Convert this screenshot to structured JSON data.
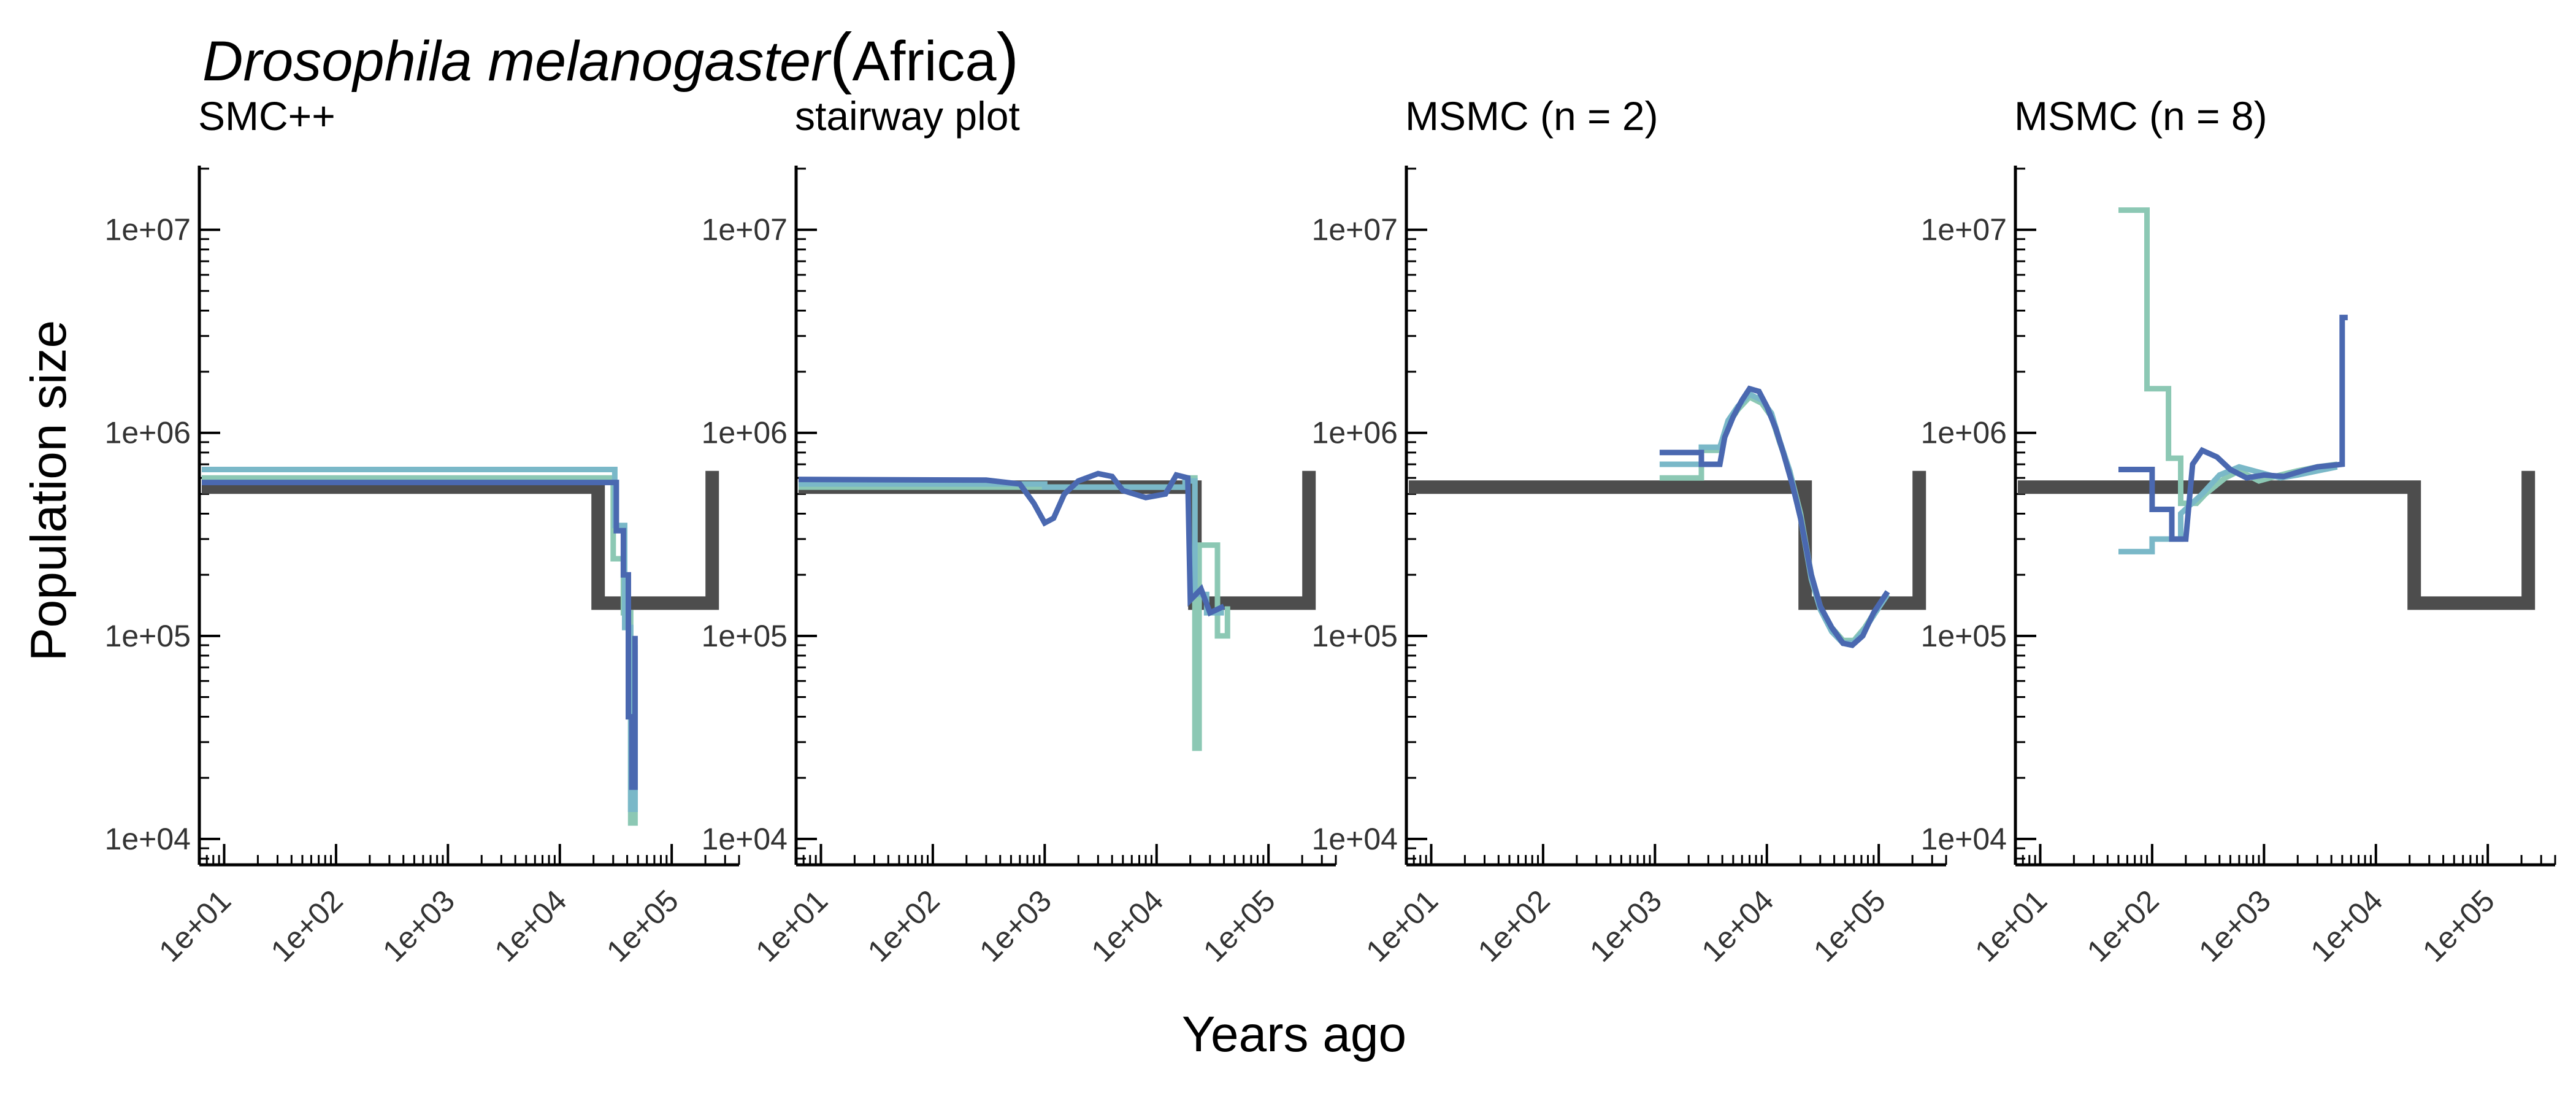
{
  "figure": {
    "title_species": "Drosophila melanogaster",
    "title_region": "Africa",
    "xlabel": "Years ago",
    "ylabel": "Population size"
  },
  "chart_data": [
    {
      "type": "line",
      "title": "SMC++",
      "x_scale": "log",
      "y_scale": "log",
      "xlim": [
        6,
        400000
      ],
      "ylim": [
        8000,
        20000000
      ],
      "x_ticks": [
        "1e+01",
        "1e+02",
        "1e+03",
        "1e+04",
        "1e+05"
      ],
      "y_ticks": [
        "1e+04",
        "1e+05",
        "1e+06",
        "1e+07"
      ],
      "series": [
        {
          "role": "truth",
          "color": "#4d4d4d",
          "points": [
            [
              6,
              540000
            ],
            [
              22000,
              540000
            ],
            [
              22000,
              145000
            ],
            [
              230000,
              145000
            ],
            [
              230000,
              650000
            ]
          ]
        },
        {
          "color": "#8cc8b4",
          "points": [
            [
              6,
              600000
            ],
            [
              30000,
              600000
            ],
            [
              30000,
              240000
            ],
            [
              37000,
              240000
            ],
            [
              37000,
              130000
            ],
            [
              43000,
              130000
            ],
            [
              43000,
              12000
            ],
            [
              47000,
              12000
            ],
            [
              47000,
              80000
            ]
          ]
        },
        {
          "color": "#7ab8c8",
          "points": [
            [
              6,
              660000
            ],
            [
              31000,
              660000
            ],
            [
              31000,
              350000
            ],
            [
              38000,
              350000
            ],
            [
              38000,
              110000
            ],
            [
              43000,
              110000
            ],
            [
              43000,
              14000
            ],
            [
              47000,
              14000
            ],
            [
              47000,
              90000
            ]
          ]
        },
        {
          "color": "#4a68b0",
          "points": [
            [
              6,
              570000
            ],
            [
              32000,
              570000
            ],
            [
              32000,
              330000
            ],
            [
              37000,
              330000
            ],
            [
              37000,
              200000
            ],
            [
              41000,
              200000
            ],
            [
              41000,
              40000
            ],
            [
              44000,
              40000
            ],
            [
              44000,
              18000
            ],
            [
              47000,
              18000
            ],
            [
              47000,
              100000
            ]
          ]
        }
      ]
    },
    {
      "type": "line",
      "title": "stairway plot",
      "x_scale": "log",
      "y_scale": "log",
      "xlim": [
        6,
        400000
      ],
      "ylim": [
        8000,
        20000000
      ],
      "x_ticks": [
        "1e+01",
        "1e+02",
        "1e+03",
        "1e+04",
        "1e+05"
      ],
      "y_ticks": [
        "1e+04",
        "1e+05",
        "1e+06",
        "1e+07"
      ],
      "series": [
        {
          "role": "truth",
          "color": "#4d4d4d",
          "points": [
            [
              6,
              540000
            ],
            [
              22000,
              540000
            ],
            [
              22000,
              145000
            ],
            [
              230000,
              145000
            ],
            [
              230000,
              650000
            ]
          ]
        },
        {
          "color": "#8cc8b4",
          "points": [
            [
              6,
              540000
            ],
            [
              18000,
              540000
            ],
            [
              18000,
              600000
            ],
            [
              22000,
              600000
            ],
            [
              22000,
              28000
            ],
            [
              24000,
              28000
            ],
            [
              24000,
              280000
            ],
            [
              35000,
              280000
            ],
            [
              35000,
              100000
            ],
            [
              43000,
              100000
            ],
            [
              43000,
              140000
            ]
          ]
        },
        {
          "color": "#7ab8c8",
          "points": [
            [
              6,
              560000
            ],
            [
              1000,
              560000
            ],
            [
              1000,
              540000
            ],
            [
              18000,
              540000
            ],
            [
              18000,
              580000
            ],
            [
              22000,
              580000
            ],
            [
              22000,
              160000
            ],
            [
              28000,
              160000
            ],
            [
              28000,
              130000
            ],
            [
              40000,
              130000
            ]
          ]
        },
        {
          "color": "#4a68b0",
          "points": [
            [
              6,
              590000
            ],
            [
              300,
              585000
            ],
            [
              600,
              560000
            ],
            [
              800,
              450000
            ],
            [
              1000,
              360000
            ],
            [
              1200,
              380000
            ],
            [
              1500,
              500000
            ],
            [
              2000,
              580000
            ],
            [
              3000,
              630000
            ],
            [
              4000,
              610000
            ],
            [
              5000,
              520000
            ],
            [
              8000,
              480000
            ],
            [
              12000,
              500000
            ],
            [
              15000,
              620000
            ],
            [
              19000,
              600000
            ],
            [
              20000,
              150000
            ],
            [
              25000,
              170000
            ],
            [
              30000,
              130000
            ],
            [
              40000,
              140000
            ]
          ]
        }
      ]
    },
    {
      "type": "line",
      "title": "MSMC (n = 2)",
      "x_scale": "log",
      "y_scale": "log",
      "xlim": [
        6,
        400000
      ],
      "ylim": [
        8000,
        20000000
      ],
      "x_ticks": [
        "1e+01",
        "1e+02",
        "1e+03",
        "1e+04",
        "1e+05"
      ],
      "y_ticks": [
        "1e+04",
        "1e+05",
        "1e+06",
        "1e+07"
      ],
      "series": [
        {
          "role": "truth",
          "color": "#4d4d4d",
          "points": [
            [
              6,
              540000
            ],
            [
              22000,
              540000
            ],
            [
              22000,
              145000
            ],
            [
              230000,
              145000
            ],
            [
              230000,
              650000
            ]
          ]
        },
        {
          "color": "#8cc8b4",
          "points": [
            [
              1100,
              600000
            ],
            [
              2600,
              600000
            ],
            [
              2600,
              820000
            ],
            [
              3800,
              820000
            ],
            [
              4500,
              1100000
            ],
            [
              5500,
              1300000
            ],
            [
              7000,
              1500000
            ],
            [
              9000,
              1400000
            ],
            [
              11000,
              1200000
            ],
            [
              13000,
              900000
            ],
            [
              16000,
              650000
            ],
            [
              20000,
              400000
            ],
            [
              25000,
              200000
            ],
            [
              30000,
              140000
            ],
            [
              38000,
              110000
            ],
            [
              48000,
              95000
            ],
            [
              60000,
              95000
            ],
            [
              75000,
              110000
            ],
            [
              95000,
              135000
            ],
            [
              120000,
              165000
            ]
          ]
        },
        {
          "color": "#7ab8c8",
          "points": [
            [
              1100,
              700000
            ],
            [
              2600,
              700000
            ],
            [
              2600,
              850000
            ],
            [
              3800,
              850000
            ],
            [
              4500,
              1150000
            ],
            [
              5500,
              1350000
            ],
            [
              7000,
              1550000
            ],
            [
              9000,
              1450000
            ],
            [
              11000,
              1250000
            ],
            [
              13000,
              920000
            ],
            [
              16000,
              650000
            ],
            [
              20000,
              380000
            ],
            [
              25000,
              190000
            ],
            [
              30000,
              135000
            ],
            [
              38000,
              105000
            ],
            [
              48000,
              92000
            ],
            [
              60000,
              93000
            ],
            [
              75000,
              108000
            ],
            [
              95000,
              132000
            ],
            [
              120000,
              160000
            ]
          ]
        },
        {
          "color": "#4a68b0",
          "points": [
            [
              1100,
              800000
            ],
            [
              2600,
              800000
            ],
            [
              2600,
              700000
            ],
            [
              3800,
              700000
            ],
            [
              4200,
              950000
            ],
            [
              5000,
              1200000
            ],
            [
              6000,
              1450000
            ],
            [
              7000,
              1650000
            ],
            [
              8500,
              1600000
            ],
            [
              10000,
              1350000
            ],
            [
              12000,
              1050000
            ],
            [
              14000,
              800000
            ],
            [
              17000,
              550000
            ],
            [
              20000,
              380000
            ],
            [
              25000,
              200000
            ],
            [
              30000,
              140000
            ],
            [
              38000,
              110000
            ],
            [
              48000,
              92000
            ],
            [
              58000,
              90000
            ],
            [
              72000,
              100000
            ],
            [
              90000,
              130000
            ],
            [
              120000,
              165000
            ]
          ]
        }
      ]
    },
    {
      "type": "line",
      "title": "MSMC (n = 8)",
      "x_scale": "log",
      "y_scale": "log",
      "xlim": [
        6,
        400000
      ],
      "ylim": [
        8000,
        20000000
      ],
      "x_ticks": [
        "1e+01",
        "1e+02",
        "1e+03",
        "1e+04",
        "1e+05"
      ],
      "y_ticks": [
        "1e+04",
        "1e+05",
        "1e+06",
        "1e+07"
      ],
      "series": [
        {
          "role": "truth",
          "color": "#4d4d4d",
          "points": [
            [
              6,
              540000
            ],
            [
              22000,
              540000
            ],
            [
              22000,
              145000
            ],
            [
              230000,
              145000
            ],
            [
              230000,
              650000
            ]
          ]
        },
        {
          "color": "#8cc8b4",
          "points": [
            [
              50,
              12500000
            ],
            [
              90,
              12500000
            ],
            [
              90,
              1650000
            ],
            [
              140,
              1650000
            ],
            [
              140,
              750000
            ],
            [
              180,
              750000
            ],
            [
              180,
              450000
            ],
            [
              250,
              450000
            ],
            [
              300,
              500000
            ],
            [
              450,
              600000
            ],
            [
              600,
              650000
            ],
            [
              900,
              580000
            ],
            [
              1400,
              620000
            ],
            [
              2000,
              650000
            ],
            [
              3000,
              680000
            ],
            [
              4500,
              700000
            ]
          ]
        },
        {
          "color": "#7ab8c8",
          "points": [
            [
              50,
              260000
            ],
            [
              100,
              260000
            ],
            [
              100,
              300000
            ],
            [
              180,
              300000
            ],
            [
              180,
              400000
            ],
            [
              280,
              500000
            ],
            [
              400,
              620000
            ],
            [
              600,
              680000
            ],
            [
              900,
              640000
            ],
            [
              1400,
              600000
            ],
            [
              2000,
              620000
            ],
            [
              3000,
              650000
            ],
            [
              4500,
              680000
            ]
          ]
        },
        {
          "color": "#4a68b0",
          "points": [
            [
              50,
              660000
            ],
            [
              100,
              660000
            ],
            [
              100,
              420000
            ],
            [
              150,
              420000
            ],
            [
              150,
              300000
            ],
            [
              200,
              300000
            ],
            [
              230,
              700000
            ],
            [
              280,
              820000
            ],
            [
              380,
              760000
            ],
            [
              500,
              660000
            ],
            [
              700,
              600000
            ],
            [
              1000,
              620000
            ],
            [
              1500,
              610000
            ],
            [
              2200,
              650000
            ],
            [
              3000,
              680000
            ],
            [
              5000,
              700000
            ],
            [
              5000,
              3700000
            ],
            [
              5600,
              3700000
            ]
          ]
        }
      ]
    }
  ]
}
